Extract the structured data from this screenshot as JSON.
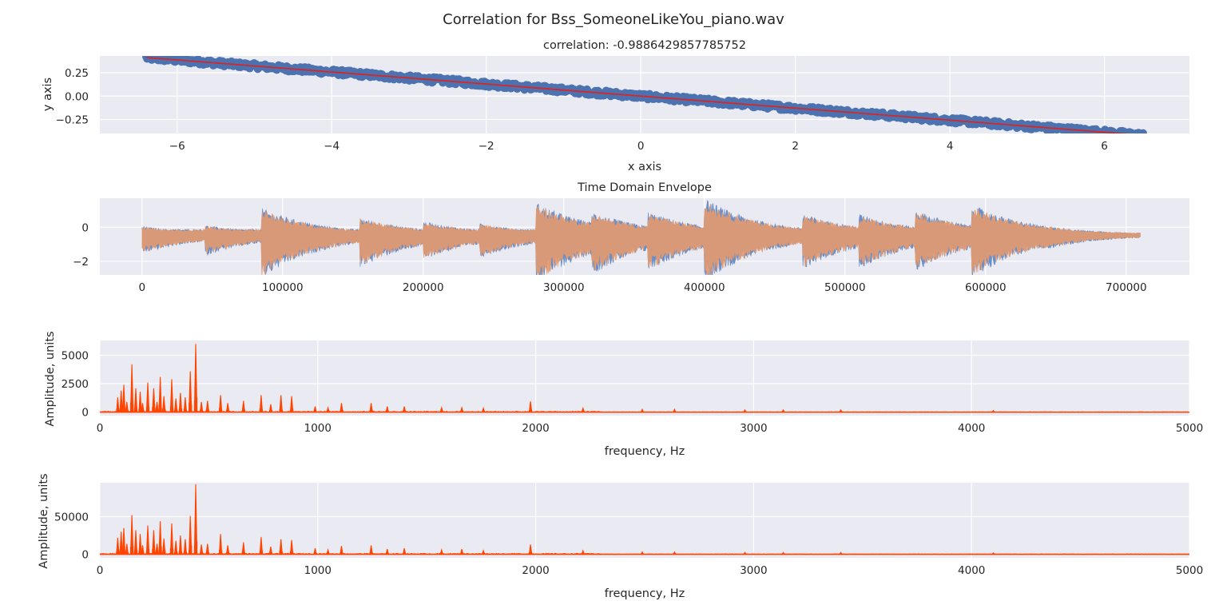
{
  "figure": {
    "suptitle": "Correlation for Bss_SomeoneLikeYou_piano.wav"
  },
  "chart_data": [
    {
      "type": "scatter",
      "title": "correlation: -0.9886429857785752",
      "xlabel": "x axis",
      "ylabel": "y axis",
      "xlim": [
        -7.0,
        7.1
      ],
      "ylim": [
        -0.4,
        0.43
      ],
      "xticks": [
        -6,
        -4,
        -2,
        0,
        2,
        4,
        6
      ],
      "xtick_labels": [
        "−6",
        "−4",
        "−2",
        "0",
        "2",
        "4",
        "6"
      ],
      "yticks": [
        -0.25,
        0.0,
        0.25
      ],
      "ytick_labels": [
        "−0.25",
        "0.00",
        "0.25"
      ],
      "grid": true,
      "series": [
        {
          "kind": "scatter",
          "x_range": [
            -6.4,
            6.5
          ],
          "slope": -0.0645,
          "intercept": 0.0,
          "band": 0.03,
          "color": "#4c72b0"
        },
        {
          "kind": "line",
          "x": [
            -6.4,
            6.5
          ],
          "y": [
            0.413,
            -0.419
          ],
          "color": "#d62728"
        }
      ]
    },
    {
      "type": "line",
      "title": "Time Domain Envelope",
      "xlabel": "",
      "ylabel": "",
      "xlim": [
        -30000,
        745000
      ],
      "ylim": [
        -2.8,
        1.7
      ],
      "xticks": [
        0,
        100000,
        200000,
        300000,
        400000,
        500000,
        600000,
        700000
      ],
      "xtick_labels": [
        "0",
        "100000",
        "200000",
        "300000",
        "400000",
        "500000",
        "600000",
        "700000"
      ],
      "yticks": [
        -2,
        0
      ],
      "ytick_labels": [
        "−2",
        "0"
      ],
      "grid": true,
      "baseline": -0.45,
      "n_samples": 710000,
      "onsets": [
        {
          "x": 0,
          "up": 0.45,
          "down": 1.0
        },
        {
          "x": 45000,
          "up": 0.5,
          "down": 1.1
        },
        {
          "x": 85000,
          "up": 1.4,
          "down": 2.3
        },
        {
          "x": 155000,
          "up": 0.9,
          "down": 1.7
        },
        {
          "x": 200000,
          "up": 0.7,
          "down": 1.3
        },
        {
          "x": 240000,
          "up": 0.6,
          "down": 1.2
        },
        {
          "x": 280000,
          "up": 1.7,
          "down": 2.6
        },
        {
          "x": 320000,
          "up": 1.2,
          "down": 2.1
        },
        {
          "x": 360000,
          "up": 1.2,
          "down": 1.9
        },
        {
          "x": 400000,
          "up": 1.9,
          "down": 2.5
        },
        {
          "x": 470000,
          "up": 1.1,
          "down": 1.8
        },
        {
          "x": 510000,
          "up": 1.1,
          "down": 1.8
        },
        {
          "x": 550000,
          "up": 1.3,
          "down": 1.9
        },
        {
          "x": 590000,
          "up": 1.6,
          "down": 2.3
        },
        {
          "x": 640000,
          "up": 0.5,
          "down": 0.8
        }
      ],
      "series": [
        {
          "kind": "envelope",
          "color": "#6a8fc7"
        },
        {
          "kind": "envelope",
          "color": "#e49a70"
        }
      ]
    },
    {
      "type": "line",
      "title": "",
      "xlabel": "frequency, Hz",
      "ylabel": "Amplitude, units",
      "xlim": [
        0,
        5000
      ],
      "ylim": [
        -300,
        6300
      ],
      "xticks": [
        0,
        1000,
        2000,
        3000,
        4000,
        5000
      ],
      "xtick_labels": [
        "0",
        "1000",
        "2000",
        "3000",
        "4000",
        "5000"
      ],
      "yticks": [
        0,
        2500,
        5000
      ],
      "ytick_labels": [
        "0",
        "2500",
        "5000"
      ],
      "grid": true,
      "color": "#ff4500",
      "peaks": [
        [
          82,
          1300
        ],
        [
          98,
          1900
        ],
        [
          110,
          2400
        ],
        [
          124,
          900
        ],
        [
          147,
          4200
        ],
        [
          165,
          2100
        ],
        [
          185,
          1800
        ],
        [
          196,
          800
        ],
        [
          220,
          2600
        ],
        [
          247,
          2100
        ],
        [
          262,
          900
        ],
        [
          277,
          3100
        ],
        [
          294,
          1400
        ],
        [
          330,
          2900
        ],
        [
          349,
          1200
        ],
        [
          370,
          1700
        ],
        [
          392,
          1300
        ],
        [
          415,
          3600
        ],
        [
          440,
          6000
        ],
        [
          466,
          900
        ],
        [
          494,
          1000
        ],
        [
          554,
          1500
        ],
        [
          587,
          800
        ],
        [
          659,
          1000
        ],
        [
          740,
          1500
        ],
        [
          784,
          700
        ],
        [
          831,
          1500
        ],
        [
          880,
          1400
        ],
        [
          988,
          500
        ],
        [
          1047,
          400
        ],
        [
          1109,
          800
        ],
        [
          1245,
          800
        ],
        [
          1319,
          500
        ],
        [
          1397,
          500
        ],
        [
          1568,
          400
        ],
        [
          1661,
          400
        ],
        [
          1760,
          350
        ],
        [
          1976,
          950
        ],
        [
          2217,
          350
        ],
        [
          2489,
          250
        ],
        [
          2637,
          250
        ],
        [
          2960,
          200
        ],
        [
          3136,
          200
        ],
        [
          3400,
          200
        ],
        [
          4100,
          150
        ]
      ]
    },
    {
      "type": "line",
      "title": "",
      "xlabel": "frequency, Hz",
      "ylabel": "Amplitude, units",
      "xlim": [
        0,
        5000
      ],
      "ylim": [
        -4700,
        95000
      ],
      "xticks": [
        0,
        1000,
        2000,
        3000,
        4000,
        5000
      ],
      "xtick_labels": [
        "0",
        "1000",
        "2000",
        "3000",
        "4000",
        "5000"
      ],
      "yticks": [
        0,
        50000
      ],
      "ytick_labels": [
        "0",
        "50000"
      ],
      "grid": true,
      "color": "#ff4500",
      "peaks": [
        [
          82,
          22000
        ],
        [
          98,
          30000
        ],
        [
          110,
          35000
        ],
        [
          124,
          14000
        ],
        [
          147,
          52000
        ],
        [
          165,
          32000
        ],
        [
          185,
          27000
        ],
        [
          196,
          12000
        ],
        [
          220,
          38000
        ],
        [
          247,
          32000
        ],
        [
          262,
          14000
        ],
        [
          277,
          44000
        ],
        [
          294,
          21000
        ],
        [
          330,
          41000
        ],
        [
          349,
          18000
        ],
        [
          370,
          25000
        ],
        [
          392,
          20000
        ],
        [
          415,
          51000
        ],
        [
          440,
          93000
        ],
        [
          466,
          13000
        ],
        [
          494,
          14000
        ],
        [
          554,
          27000
        ],
        [
          587,
          12000
        ],
        [
          659,
          16000
        ],
        [
          740,
          23000
        ],
        [
          784,
          10000
        ],
        [
          831,
          20000
        ],
        [
          880,
          19000
        ],
        [
          988,
          8000
        ],
        [
          1047,
          6000
        ],
        [
          1109,
          11000
        ],
        [
          1245,
          12000
        ],
        [
          1319,
          7000
        ],
        [
          1397,
          8000
        ],
        [
          1568,
          6000
        ],
        [
          1661,
          7000
        ],
        [
          1760,
          5000
        ],
        [
          1976,
          13000
        ],
        [
          2217,
          5000
        ],
        [
          2489,
          3000
        ],
        [
          2637,
          3000
        ],
        [
          2960,
          2500
        ],
        [
          3136,
          2500
        ],
        [
          3400,
          2500
        ],
        [
          4100,
          2000
        ]
      ]
    }
  ]
}
